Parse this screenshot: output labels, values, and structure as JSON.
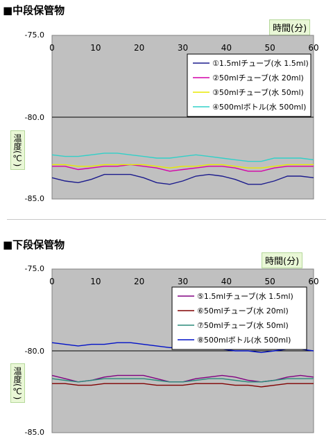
{
  "chart_data": [
    {
      "type": "line",
      "title": "■中段保管物",
      "xlabel": "時間(分)",
      "ylabel": "温度(℃)",
      "xlim": [
        0,
        60
      ],
      "ylim": [
        -85.0,
        -75.0
      ],
      "xticks": [
        "0",
        "10",
        "20",
        "30",
        "40",
        "50",
        "60"
      ],
      "yticks": [
        "-75.0",
        "-80.0",
        "-85.0"
      ],
      "grid": "horizontal line at -80.0",
      "legend_position": "top-right",
      "series": [
        {
          "name": "①1.5mlチューブ(水 1.5ml)",
          "color": "#1a1a8c",
          "x": [
            0,
            3,
            6,
            9,
            12,
            15,
            18,
            21,
            24,
            27,
            30,
            33,
            36,
            39,
            42,
            45,
            48,
            51,
            54,
            57,
            60
          ],
          "values": [
            -83.7,
            -83.9,
            -84.0,
            -83.8,
            -83.5,
            -83.5,
            -83.5,
            -83.7,
            -84.0,
            -84.1,
            -83.9,
            -83.6,
            -83.5,
            -83.6,
            -83.8,
            -84.1,
            -84.1,
            -83.9,
            -83.6,
            -83.6,
            -83.7
          ]
        },
        {
          "name": "②50mlチューブ(水 20ml)",
          "color": "#d400a8",
          "x": [
            0,
            3,
            6,
            9,
            12,
            15,
            18,
            21,
            24,
            27,
            30,
            33,
            36,
            39,
            42,
            45,
            48,
            51,
            54,
            57,
            60
          ],
          "values": [
            -83.0,
            -83.0,
            -83.2,
            -83.1,
            -83.0,
            -83.0,
            -82.9,
            -83.0,
            -83.1,
            -83.3,
            -83.2,
            -83.1,
            -83.0,
            -83.0,
            -83.1,
            -83.3,
            -83.3,
            -83.1,
            -83.0,
            -83.0,
            -83.0
          ]
        },
        {
          "name": "③50mlチューブ(水 50ml)",
          "color": "#e8e800",
          "x": [
            0,
            3,
            6,
            9,
            12,
            15,
            18,
            21,
            24,
            27,
            30,
            33,
            36,
            39,
            42,
            45,
            48,
            51,
            54,
            57,
            60
          ],
          "values": [
            -82.9,
            -82.9,
            -83.0,
            -83.0,
            -82.9,
            -82.9,
            -82.9,
            -82.9,
            -83.0,
            -83.1,
            -83.0,
            -83.0,
            -82.9,
            -82.9,
            -83.0,
            -83.1,
            -83.1,
            -83.0,
            -82.9,
            -82.9,
            -82.9
          ]
        },
        {
          "name": "④500mlボトル(水 500ml)",
          "color": "#30d0c8",
          "x": [
            0,
            3,
            6,
            9,
            12,
            15,
            18,
            21,
            24,
            27,
            30,
            33,
            36,
            39,
            42,
            45,
            48,
            51,
            54,
            57,
            60
          ],
          "values": [
            -82.3,
            -82.4,
            -82.4,
            -82.3,
            -82.2,
            -82.2,
            -82.3,
            -82.4,
            -82.5,
            -82.5,
            -82.4,
            -82.3,
            -82.4,
            -82.5,
            -82.6,
            -82.7,
            -82.7,
            -82.5,
            -82.5,
            -82.5,
            -82.6
          ]
        }
      ]
    },
    {
      "type": "line",
      "title": "■下段保管物",
      "xlabel": "時間(分)",
      "ylabel": "温度(℃)",
      "xlim": [
        0,
        60
      ],
      "ylim": [
        -85.0,
        -75.0
      ],
      "xticks": [
        "0",
        "10",
        "20",
        "30",
        "40",
        "50",
        "60"
      ],
      "yticks": [
        "-75.0",
        "-80.0",
        "-85.0"
      ],
      "grid": "horizontal line at -80.0",
      "legend_position": "top-right",
      "series": [
        {
          "name": "⑤1.5mlチューブ(水 1.5ml)",
          "color": "#800080",
          "x": [
            0,
            3,
            6,
            9,
            12,
            15,
            18,
            21,
            24,
            27,
            30,
            33,
            36,
            39,
            42,
            45,
            48,
            51,
            54,
            57,
            60
          ],
          "values": [
            -81.5,
            -81.7,
            -81.9,
            -81.8,
            -81.6,
            -81.5,
            -81.5,
            -81.5,
            -81.7,
            -81.9,
            -81.9,
            -81.7,
            -81.6,
            -81.5,
            -81.6,
            -81.8,
            -81.9,
            -81.8,
            -81.6,
            -81.5,
            -81.6
          ]
        },
        {
          "name": "⑥50mlチューブ(水 20ml)",
          "color": "#800000",
          "x": [
            0,
            3,
            6,
            9,
            12,
            15,
            18,
            21,
            24,
            27,
            30,
            33,
            36,
            39,
            42,
            45,
            48,
            51,
            54,
            57,
            60
          ],
          "values": [
            -82.0,
            -82.0,
            -82.1,
            -82.1,
            -82.0,
            -82.0,
            -82.0,
            -82.0,
            -82.1,
            -82.1,
            -82.1,
            -82.0,
            -82.0,
            -82.0,
            -82.1,
            -82.1,
            -82.2,
            -82.1,
            -82.0,
            -82.0,
            -82.0
          ]
        },
        {
          "name": "⑦50mlチューブ(水 50ml)",
          "color": "#2a8a7a",
          "x": [
            0,
            3,
            6,
            9,
            12,
            15,
            18,
            21,
            24,
            27,
            30,
            33,
            36,
            39,
            42,
            45,
            48,
            51,
            54,
            57,
            60
          ],
          "values": [
            -81.7,
            -81.8,
            -81.9,
            -81.8,
            -81.7,
            -81.7,
            -81.7,
            -81.7,
            -81.8,
            -81.9,
            -81.9,
            -81.8,
            -81.7,
            -81.7,
            -81.8,
            -81.9,
            -81.9,
            -81.8,
            -81.7,
            -81.7,
            -81.7
          ]
        },
        {
          "name": "⑧500mlボトル(水 500ml)",
          "color": "#0010c8",
          "x": [
            0,
            3,
            6,
            9,
            12,
            15,
            18,
            21,
            24,
            27,
            30,
            33,
            36,
            39,
            42,
            45,
            48,
            51,
            54,
            57,
            60
          ],
          "values": [
            -79.5,
            -79.6,
            -79.7,
            -79.6,
            -79.6,
            -79.5,
            -79.5,
            -79.6,
            -79.7,
            -79.8,
            -79.8,
            -79.8,
            -79.8,
            -79.9,
            -80.0,
            -80.0,
            -80.1,
            -80.0,
            -79.9,
            -79.9,
            -80.0
          ]
        }
      ]
    }
  ]
}
